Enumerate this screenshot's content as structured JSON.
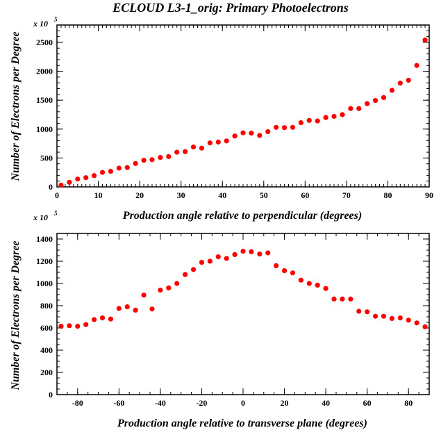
{
  "title": "ECLOUD L3-1_orig: Primary Photoelectrons",
  "chart_data": [
    {
      "type": "scatter",
      "xlabel": "Production angle relative to perpendicular (degrees)",
      "ylabel": "Number of Electrons per Degree",
      "y_multiplier": "x 10",
      "y_multiplier_exponent": "5",
      "xlim": [
        0,
        90
      ],
      "ylim": [
        0,
        2800
      ],
      "grid": false,
      "marker_color": "#ff0000",
      "x_ticks": [
        0,
        10,
        20,
        30,
        40,
        50,
        60,
        70,
        80,
        90
      ],
      "y_ticks": [
        0,
        500,
        1000,
        1500,
        2000,
        2500
      ],
      "x": [
        1,
        3,
        5,
        7,
        9,
        11,
        13,
        15,
        17,
        19,
        21,
        23,
        25,
        27,
        29,
        31,
        33,
        35,
        37,
        39,
        41,
        43,
        45,
        47,
        49,
        51,
        53,
        55,
        57,
        59,
        61,
        63,
        65,
        67,
        69,
        71,
        73,
        75,
        77,
        79,
        81,
        83,
        85,
        87,
        89
      ],
      "y": [
        30,
        80,
        135,
        160,
        195,
        250,
        270,
        325,
        335,
        405,
        460,
        470,
        510,
        525,
        600,
        610,
        690,
        670,
        760,
        775,
        795,
        880,
        935,
        930,
        890,
        955,
        1030,
        1025,
        1030,
        1110,
        1150,
        1140,
        1200,
        1220,
        1250,
        1355,
        1355,
        1440,
        1495,
        1545,
        1670,
        1795,
        1845,
        2100,
        2540
      ]
    },
    {
      "type": "scatter",
      "xlabel": "Production angle relative to transverse plane (degrees)",
      "ylabel": "Number of Electrons per Degree",
      "y_multiplier": "x 10",
      "y_multiplier_exponent": "5",
      "xlim": [
        -90,
        90
      ],
      "ylim": [
        0,
        1450
      ],
      "grid": false,
      "marker_color": "#ff0000",
      "x_ticks": [
        -80,
        -60,
        -40,
        -20,
        0,
        20,
        40,
        60,
        80
      ],
      "y_ticks": [
        0,
        200,
        400,
        600,
        800,
        1000,
        1200,
        1400
      ],
      "x": [
        -88,
        -84,
        -80,
        -76,
        -72,
        -68,
        -64,
        -60,
        -56,
        -52,
        -48,
        -44,
        -40,
        -36,
        -32,
        -28,
        -24,
        -20,
        -16,
        -12,
        -8,
        -4,
        0,
        4,
        8,
        12,
        16,
        20,
        24,
        28,
        32,
        36,
        40,
        44,
        48,
        52,
        56,
        60,
        64,
        68,
        72,
        76,
        80,
        84,
        88
      ],
      "y": [
        615,
        620,
        615,
        630,
        675,
        690,
        680,
        775,
        790,
        760,
        895,
        770,
        940,
        960,
        1000,
        1080,
        1125,
        1190,
        1200,
        1240,
        1225,
        1260,
        1290,
        1285,
        1265,
        1275,
        1160,
        1115,
        1095,
        1030,
        1000,
        985,
        955,
        860,
        860,
        860,
        750,
        745,
        705,
        705,
        685,
        690,
        670,
        645,
        610
      ]
    }
  ]
}
